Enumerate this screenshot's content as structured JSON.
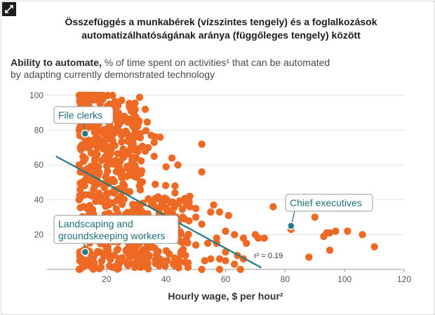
{
  "title_line1": "Összefüggés a munkabérek (vízszintes tengely) és a foglalkozások",
  "title_line2": "automatizálhatóságának aránya (függőleges tengely) között",
  "subtitle": {
    "bold": "Ability to automate,",
    "rest_line1": " % of time spent on activities¹ that can be automated",
    "line2": "by adapting currently demonstrated technology"
  },
  "colors": {
    "dots": "#ee6a24",
    "trend": "#217a84",
    "callout_border": "#9a9a9a",
    "callout_text": "#1f6f78"
  },
  "chart_data": {
    "type": "scatter",
    "xlabel": "Hourly wage, $ per hour²",
    "xlim": [
      0,
      120
    ],
    "ylim": [
      0,
      100
    ],
    "x_ticks": [
      20,
      40,
      60,
      80,
      100,
      120
    ],
    "y_ticks": [
      20,
      40,
      60,
      80,
      100
    ],
    "grid": "horizontal",
    "r2_label": "r² = 0.19",
    "trendline": {
      "x": [
        3,
        72
      ],
      "y": [
        65,
        1
      ]
    },
    "callouts": [
      {
        "label_lines": [
          "File clerks"
        ],
        "point": [
          12.8,
          78
        ]
      },
      {
        "label_lines": [
          "Chief executives"
        ],
        "point": [
          82,
          25
        ]
      },
      {
        "label_lines": [
          "Landscaping and",
          "groundskeeping workers"
        ],
        "point": [
          12.8,
          10
        ]
      }
    ],
    "points_dense": [
      [
        10.8,
        100
      ],
      [
        11.6,
        100
      ],
      [
        12.4,
        100
      ],
      [
        13.2,
        100
      ],
      [
        14,
        100
      ],
      [
        14.8,
        100
      ],
      [
        15.6,
        100
      ],
      [
        16.4,
        100
      ],
      [
        17.2,
        100
      ],
      [
        18.8,
        100
      ],
      [
        20.4,
        100
      ],
      [
        22,
        100
      ],
      [
        10.8,
        60
      ],
      [
        10.8,
        80
      ],
      [
        10.8,
        40
      ],
      [
        10.8,
        20
      ],
      [
        10.8,
        0
      ],
      [
        12,
        70
      ],
      [
        12,
        50
      ],
      [
        12,
        30
      ],
      [
        11,
        10
      ]
    ],
    "points_scattered": [
      [
        23,
        93
      ],
      [
        24,
        90
      ],
      [
        26,
        88
      ],
      [
        27,
        85
      ],
      [
        25,
        85
      ],
      [
        29,
        84
      ],
      [
        33,
        92
      ],
      [
        35,
        77
      ],
      [
        38,
        76
      ],
      [
        36,
        73
      ],
      [
        34,
        70
      ],
      [
        33,
        68
      ],
      [
        30,
        64
      ],
      [
        36,
        65
      ],
      [
        42,
        64
      ],
      [
        44,
        60
      ],
      [
        40,
        59
      ],
      [
        52,
        72
      ],
      [
        52,
        56
      ],
      [
        43,
        48
      ],
      [
        43,
        44
      ],
      [
        48,
        42
      ],
      [
        48,
        36
      ],
      [
        47,
        37
      ],
      [
        50,
        35
      ],
      [
        50,
        30
      ],
      [
        52,
        26
      ],
      [
        56,
        37
      ],
      [
        55,
        33
      ],
      [
        58,
        33
      ],
      [
        61,
        31
      ],
      [
        60,
        22
      ],
      [
        60,
        10
      ],
      [
        63,
        20
      ],
      [
        66,
        18
      ],
      [
        67,
        15
      ],
      [
        70,
        20
      ],
      [
        71,
        18
      ],
      [
        73,
        18
      ],
      [
        57,
        18
      ],
      [
        57,
        15
      ],
      [
        54,
        15
      ],
      [
        50,
        14
      ],
      [
        53,
        5
      ],
      [
        55,
        6
      ],
      [
        58,
        6
      ],
      [
        60,
        5
      ],
      [
        63,
        3
      ],
      [
        64,
        8
      ],
      [
        66,
        6
      ],
      [
        52,
        0
      ],
      [
        58,
        0
      ],
      [
        65,
        0
      ],
      [
        76,
        36
      ],
      [
        82,
        23
      ],
      [
        86,
        36
      ],
      [
        88,
        7
      ],
      [
        90,
        30
      ],
      [
        93,
        19
      ],
      [
        94,
        21
      ],
      [
        95,
        21
      ],
      [
        97,
        22
      ],
      [
        95,
        11
      ],
      [
        101,
        22
      ],
      [
        106,
        20
      ],
      [
        110,
        13
      ]
    ]
  }
}
